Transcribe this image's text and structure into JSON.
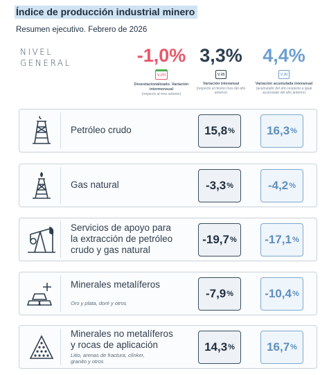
{
  "header": {
    "title": "Índice de producción industrial minero",
    "subtitle": "Resumen ejecutivo. Febrero de 2026"
  },
  "nivel_general": {
    "line1": "NIVEL",
    "line2": "GENERAL"
  },
  "kpis": [
    {
      "value": "-1,0%",
      "badge": "v.im",
      "caption": "Desestacionalizado. Variación intermensual",
      "note": "(respecto al mes anterior)",
      "color": "#e8576a"
    },
    {
      "value": "3,3%",
      "badge": "v.ia",
      "caption": "Variación interanual",
      "note": "(respecto al mismo mes del año anterior)",
      "color": "#2c3e50"
    },
    {
      "value": "4,4%",
      "badge": "v.ai",
      "caption": "Variación acumulada interanual",
      "note": "(acumulado del año respecto a igual acumulado del año anterior)",
      "color": "#6e9fcf"
    }
  ],
  "rows": [
    {
      "icon": "oil-derrick-icon",
      "label_lines": [
        "Petróleo crudo"
      ],
      "sub": "",
      "interanual": "15,8",
      "acumulada": "16,3"
    },
    {
      "icon": "gas-flare-icon",
      "label_lines": [
        "Gas natural"
      ],
      "sub": "",
      "interanual": "-3,3",
      "acumulada": "-4,2"
    },
    {
      "icon": "pumpjack-icon",
      "label_lines": [
        "Servicios de apoyo para",
        "la extracción de petróleo",
        "crudo y gas natural"
      ],
      "sub": "",
      "interanual": "-19,7",
      "acumulada": "-17,1"
    },
    {
      "icon": "gold-bars-icon",
      "label_lines": [
        "Minerales metalíferos"
      ],
      "sub": "Oro y plata, doré y otros",
      "interanual": "-7,9",
      "acumulada": "-10,4"
    },
    {
      "icon": "rock-pile-icon",
      "label_lines": [
        "Minerales no metalíferos",
        "y rocas de aplicación"
      ],
      "sub_lines": [
        "Litio, arenas de fractura, clínker,",
        "granito y otros"
      ],
      "interanual": "14,3",
      "acumulada": "16,7"
    }
  ],
  "pct_symbol": "%",
  "colors": {
    "dark_box": "#3b4d61",
    "light_box": "#7fa9cf",
    "negative": "#e8576a"
  }
}
